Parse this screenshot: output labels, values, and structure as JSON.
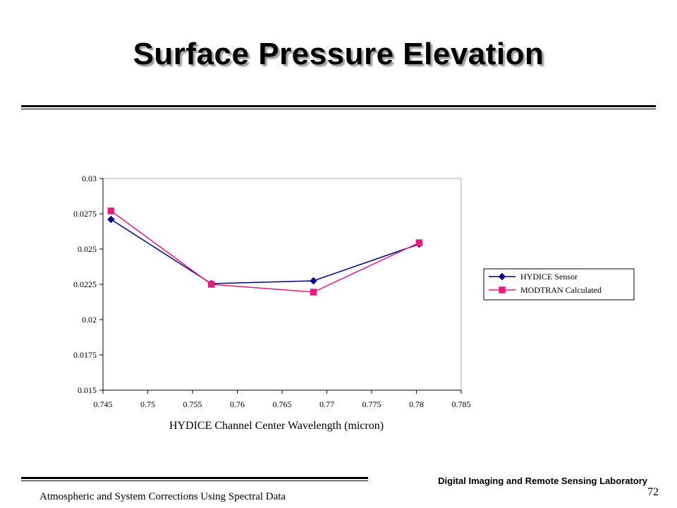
{
  "slide": {
    "title": "Surface Pressure Elevation",
    "footer_lab": "Digital Imaging and Remote Sensing Laboratory",
    "page_number": "72",
    "footer_course": "Atmospheric and System Corrections Using Spectral Data"
  },
  "chart_data": {
    "type": "line",
    "title": "",
    "xlabel": "HYDICE Channel Center Wavelength (micron)",
    "ylabel": "",
    "xlim": [
      0.745,
      0.785
    ],
    "ylim": [
      0.015,
      0.03
    ],
    "x_ticks": [
      "0.745",
      "0.75",
      "0.755",
      "0.76",
      "0.765",
      "0.77",
      "0.775",
      "0.78",
      "0.785"
    ],
    "y_ticks": [
      "0.015",
      "0.0175",
      "0.02",
      "0.0225",
      "0.025",
      "0.0275",
      "0.03"
    ],
    "grid": false,
    "legend_position": "right",
    "series": [
      {
        "name": "HYDICE Sensor",
        "color": "#000080",
        "marker": "diamond",
        "x": [
          0.7459,
          0.7571,
          0.7685,
          0.7803
        ],
        "y": [
          0.0271,
          0.02255,
          0.02275,
          0.02535
        ]
      },
      {
        "name": "MODTRAN Calculated",
        "color": "#e8197f",
        "marker": "square",
        "x": [
          0.7459,
          0.7571,
          0.7685,
          0.7803
        ],
        "y": [
          0.0277,
          0.0225,
          0.02195,
          0.02545
        ]
      }
    ]
  }
}
